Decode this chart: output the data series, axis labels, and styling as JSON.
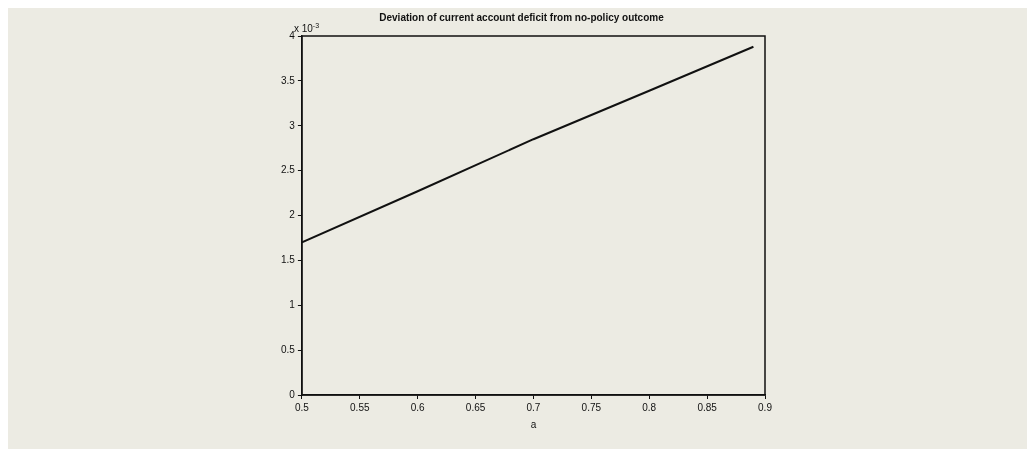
{
  "chart_data": {
    "type": "line",
    "title": "Deviation of current account deficit from no-policy outcome",
    "xlabel": "a",
    "annotations": [
      "x 10$^{-3}$"
    ],
    "series": [
      {
        "color": "#111111",
        "x": [
          0.5,
          0.6,
          0.7,
          0.8,
          0.89
        ],
        "values": [
          1.7,
          2.27,
          2.85,
          3.39,
          3.88
        ]
      }
    ],
    "xlim": [
      0.5,
      0.9
    ],
    "xticks": [
      0.5,
      0.55,
      0.6,
      0.65,
      0.7,
      0.75,
      0.8,
      0.85,
      0.9
    ],
    "ylim": [
      0,
      4
    ],
    "yticks": [
      0,
      0.5,
      1,
      1.5,
      2,
      2.5,
      3,
      3.5,
      4
    ],
    "grid": false,
    "legend": false,
    "marker": "none",
    "line_style": "solid"
  }
}
